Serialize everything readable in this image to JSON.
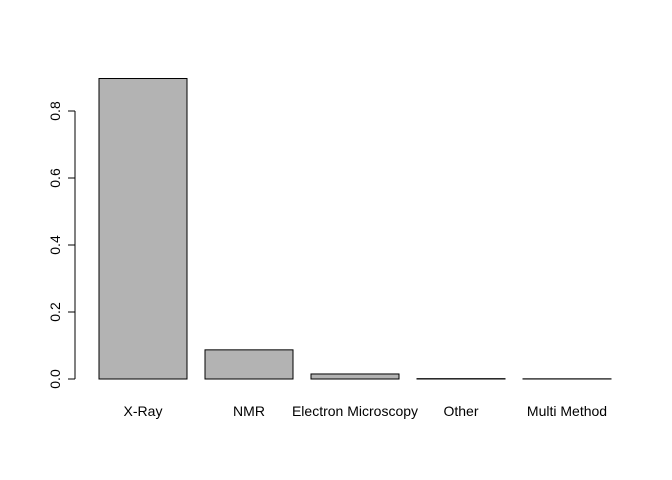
{
  "chart_data": {
    "type": "bar",
    "title": "",
    "xlabel": "",
    "ylabel": "",
    "categories": [
      "X-Ray",
      "NMR",
      "Electron Microscopy",
      "Other",
      "Multi Method"
    ],
    "values": [
      0.897,
      0.087,
      0.015,
      0.001,
      0.0005
    ],
    "ylim": [
      0,
      0.9
    ],
    "yticks": [
      0.0,
      0.2,
      0.4,
      0.6,
      0.8
    ],
    "ytick_labels": [
      "0.0",
      "0.2",
      "0.4",
      "0.6",
      "0.8"
    ],
    "grid": false,
    "legend": "none",
    "colors": {
      "bar_fill": "#b3b3b3",
      "bar_stroke": "#000000"
    }
  }
}
